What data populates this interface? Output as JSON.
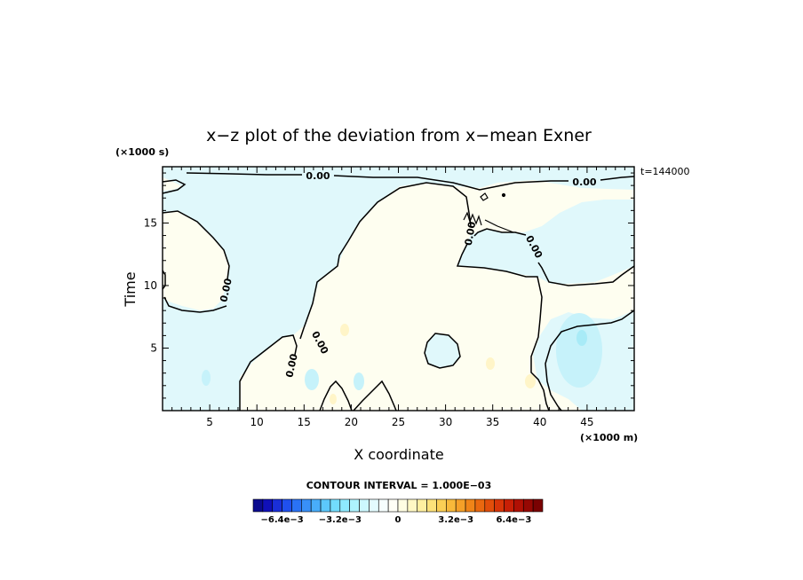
{
  "chart_data": {
    "type": "contour",
    "title": "x−z plot of the deviation from x−mean Exner",
    "xlabel": "X coordinate",
    "ylabel": "Time",
    "x_unit": "(×1000 m)",
    "y_unit": "(×1000 s)",
    "time_label": "t=144000",
    "xlim": [
      0,
      50
    ],
    "ylim": [
      0,
      19.5
    ],
    "x_major_ticks": [
      5,
      10,
      15,
      20,
      25,
      30,
      35,
      40,
      45
    ],
    "y_major_ticks": [
      5,
      10,
      15
    ],
    "contour_label": "0.00",
    "contour_interval_text": "CONTOUR INTERVAL = 1.000E−03",
    "colorbar": {
      "min": -0.008,
      "max": 0.008,
      "labels": [
        {
          "text": "−6.4e−3",
          "value": -0.0064
        },
        {
          "text": "−3.2e−3",
          "value": -0.0032
        },
        {
          "text": "0",
          "value": 0
        },
        {
          "text": "3.2e−3",
          "value": 0.0032
        },
        {
          "text": "6.4e−3",
          "value": 0.0064
        }
      ],
      "colors": [
        "#0b0b8f",
        "#1010b8",
        "#1a2fd8",
        "#2050ee",
        "#2a72f5",
        "#3890f8",
        "#48adfa",
        "#5cc8fc",
        "#72dcfd",
        "#8eeafe",
        "#aef3fe",
        "#cdf8fe",
        "#e4fbfe",
        "#f6fefe",
        "#fffff6",
        "#fffde2",
        "#fff8c4",
        "#fff0a0",
        "#fde27a",
        "#fbcf55",
        "#f8b93a",
        "#f5a028",
        "#f08418",
        "#ea680f",
        "#e24e0a",
        "#d83508",
        "#c81f06",
        "#b01004",
        "#960803",
        "#7a0202"
      ]
    },
    "colors": {
      "negative_fill": "#e0f8fb",
      "positive_fill": "#fefef0",
      "strong_negative": "#b8f0fa",
      "weak_positive": "#fff5c8",
      "contour_line": "#000000"
    }
  }
}
